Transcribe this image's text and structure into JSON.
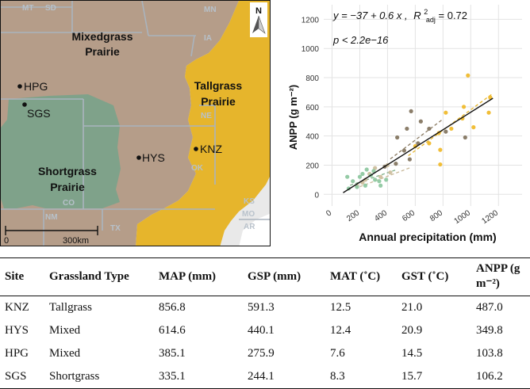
{
  "map": {
    "regions": {
      "mixed_line1": "Mixedgrass",
      "mixed_line2": "Prairie",
      "tall_line1": "Tallgrass",
      "tall_line2": "Prairie",
      "short_line1": "Shortgrass",
      "short_line2": "Prairie"
    },
    "states": [
      "MT",
      "SD",
      "MN",
      "IA",
      "NE",
      "MO",
      "CO",
      "NM",
      "TX",
      "AR",
      "OK",
      "KS"
    ],
    "sites": [
      "HPG",
      "SGS",
      "HYS",
      "KNZ"
    ],
    "north_label": "N",
    "scale_zero": "0",
    "scale_distance": "300km",
    "colors": {
      "mixedgrass": "#b59d89",
      "tallgrass": "#e6b52c",
      "shortgrass": "#7fa28a",
      "background": "#e9e9e9",
      "borders": "#a9b3bd"
    }
  },
  "chart_data": {
    "type": "scatter",
    "equation": "y = −37 + 0.6 x ,",
    "r2_label": "R",
    "r2_sup": "2",
    "r2_sub": "adj",
    "r2_value": " = 0.72",
    "p_label": "p < 2.2e−16",
    "xlabel": "Annual precipitation (mm)",
    "ylabel": "ANPP (g m⁻²)",
    "xlim": [
      -60,
      1370
    ],
    "ylim": [
      -80,
      1300
    ],
    "xticks": [
      0,
      200,
      400,
      600,
      800,
      1000,
      1200
    ],
    "yticks": [
      0,
      200,
      400,
      600,
      800,
      1000,
      1200
    ],
    "fit_line": {
      "intercept": -37,
      "slope": 0.6,
      "x_range": [
        80,
        1160
      ],
      "color": "#111111"
    },
    "site_lines": [
      {
        "name": "KNZ",
        "color": "#e6b52c",
        "x_range": [
          550,
          1150
        ],
        "intercept": -120,
        "slope": 0.7
      },
      {
        "name": "HYS",
        "color": "#8b7b63",
        "x_range": [
          420,
          800
        ],
        "intercept": -60,
        "slope": 0.72
      },
      {
        "name": "HPG",
        "color": "#c8b898",
        "x_range": [
          200,
          560
        ],
        "intercept": -20,
        "slope": 0.36
      },
      {
        "name": "SGS",
        "color": "#7fb088",
        "x_range": [
          130,
          460
        ],
        "intercept": 20,
        "slope": 0.32
      }
    ],
    "series": [
      {
        "name": "KNZ",
        "color": "#f0bb2d",
        "points": [
          [
            980,
            815
          ],
          [
            1140,
            665
          ],
          [
            1130,
            560
          ],
          [
            820,
            560
          ],
          [
            1020,
            460
          ],
          [
            950,
            600
          ],
          [
            780,
            305
          ],
          [
            780,
            205
          ],
          [
            700,
            350
          ],
          [
            940,
            520
          ],
          [
            600,
            330
          ],
          [
            770,
            420
          ],
          [
            860,
            450
          ]
        ]
      },
      {
        "name": "HYS",
        "color": "#857762",
        "points": [
          [
            570,
            570
          ],
          [
            640,
            500
          ],
          [
            540,
            450
          ],
          [
            470,
            390
          ],
          [
            520,
            300
          ],
          [
            460,
            210
          ],
          [
            380,
            190
          ],
          [
            560,
            240
          ],
          [
            700,
            450
          ],
          [
            820,
            430
          ],
          [
            960,
            390
          ],
          [
            620,
            350
          ]
        ]
      },
      {
        "name": "HPG",
        "color": "#cdbf9e",
        "points": [
          [
            310,
            180
          ],
          [
            270,
            140
          ],
          [
            180,
            60
          ],
          [
            240,
            100
          ],
          [
            350,
            120
          ],
          [
            420,
            150
          ],
          [
            220,
            80
          ],
          [
            400,
            200
          ]
        ]
      },
      {
        "name": "SGS",
        "color": "#8fc8a1",
        "points": [
          [
            110,
            120
          ],
          [
            150,
            90
          ],
          [
            180,
            50
          ],
          [
            220,
            140
          ],
          [
            250,
            170
          ],
          [
            300,
            160
          ],
          [
            310,
            100
          ],
          [
            350,
            60
          ],
          [
            390,
            100
          ],
          [
            120,
            40
          ],
          [
            200,
            120
          ],
          [
            280,
            130
          ],
          [
            340,
            90
          ],
          [
            240,
            60
          ]
        ]
      }
    ]
  },
  "table": {
    "headers": [
      "Site",
      "Grassland Type",
      "MAP (mm)",
      "GSP (mm)",
      "MAT (˚C)",
      "GST (˚C)",
      "ANPP (g m⁻²)"
    ],
    "rows": [
      [
        "KNZ",
        "Tallgrass",
        "856.8",
        "591.3",
        "12.5",
        "21.0",
        "487.0"
      ],
      [
        "HYS",
        "Mixed",
        "614.6",
        "440.1",
        "12.4",
        "20.9",
        "349.8"
      ],
      [
        "HPG",
        "Mixed",
        "385.1",
        "275.9",
        "7.6",
        "14.5",
        "103.8"
      ],
      [
        "SGS",
        "Shortgrass",
        "335.1",
        "244.1",
        "8.3",
        "15.7",
        "106.2"
      ]
    ]
  }
}
